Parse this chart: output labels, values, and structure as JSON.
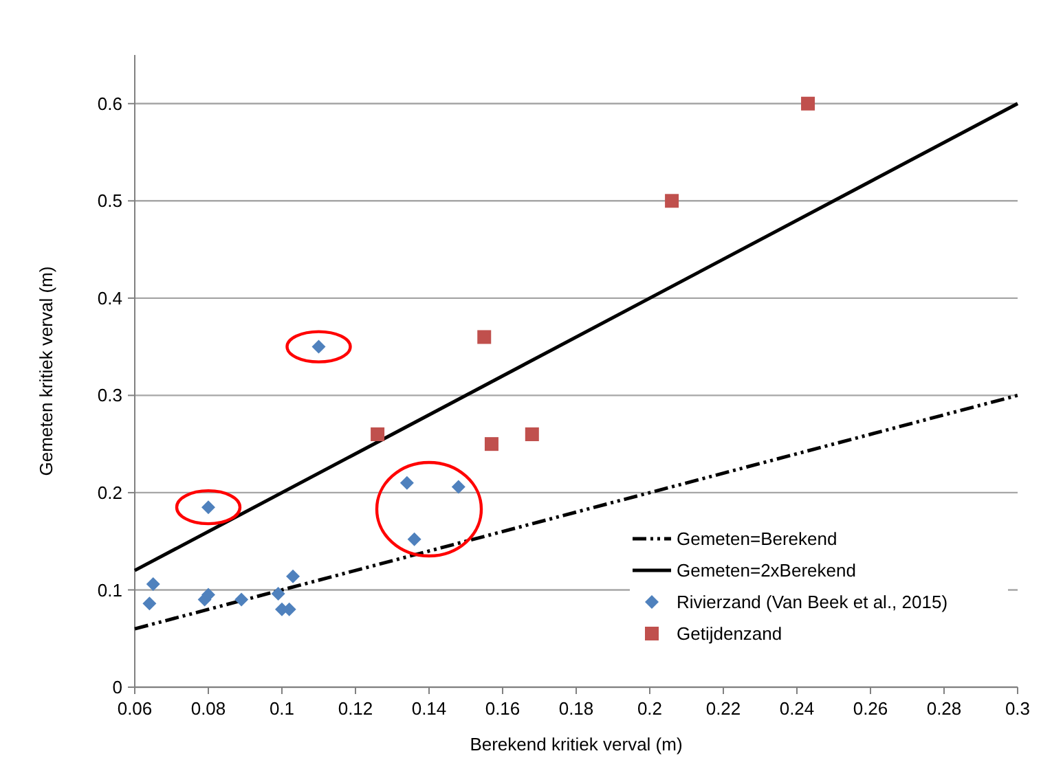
{
  "chart_data": {
    "type": "scatter",
    "xlabel": "Berekend kritiek verval (m)",
    "ylabel": "Gemeten kritiek verval (m)",
    "xlim": [
      0.06,
      0.3
    ],
    "xticks": [
      0.06,
      0.08,
      0.1,
      0.12,
      0.14,
      0.16,
      0.18,
      0.2,
      0.22,
      0.24,
      0.26,
      0.28,
      0.3
    ],
    "ylim": [
      0,
      0.65
    ],
    "yticks": [
      0,
      0.1,
      0.2,
      0.3,
      0.4,
      0.5,
      0.6
    ],
    "grid": "y",
    "legend": "bottom right",
    "series": [
      {
        "name": "Gemeten=Berekend",
        "type": "line",
        "color": "#000000",
        "line_style": "dashdotdot",
        "x": [
          0.06,
          0.3
        ],
        "values": [
          0.06,
          0.3
        ]
      },
      {
        "name": "Gemeten=2xBerekend",
        "type": "line",
        "color": "#000000",
        "line_style": "solid",
        "x": [
          0.06,
          0.3
        ],
        "values": [
          0.12,
          0.6
        ]
      },
      {
        "name": "Rivierzand (Van Beek et al., 2015)",
        "type": "scatter",
        "marker": "diamond",
        "color": "#4f81bd",
        "x": [
          0.064,
          0.065,
          0.079,
          0.08,
          0.08,
          0.089,
          0.099,
          0.1,
          0.102,
          0.103,
          0.11,
          0.134,
          0.136,
          0.148
        ],
        "values": [
          0.086,
          0.106,
          0.09,
          0.095,
          0.185,
          0.09,
          0.096,
          0.08,
          0.08,
          0.114,
          0.35,
          0.21,
          0.152,
          0.206
        ]
      },
      {
        "name": "Getijdenzand",
        "type": "scatter",
        "marker": "square",
        "color": "#c0504d",
        "x": [
          0.126,
          0.155,
          0.157,
          0.168,
          0.206,
          0.243
        ],
        "values": [
          0.26,
          0.36,
          0.25,
          0.26,
          0.5,
          0.6
        ]
      }
    ]
  }
}
